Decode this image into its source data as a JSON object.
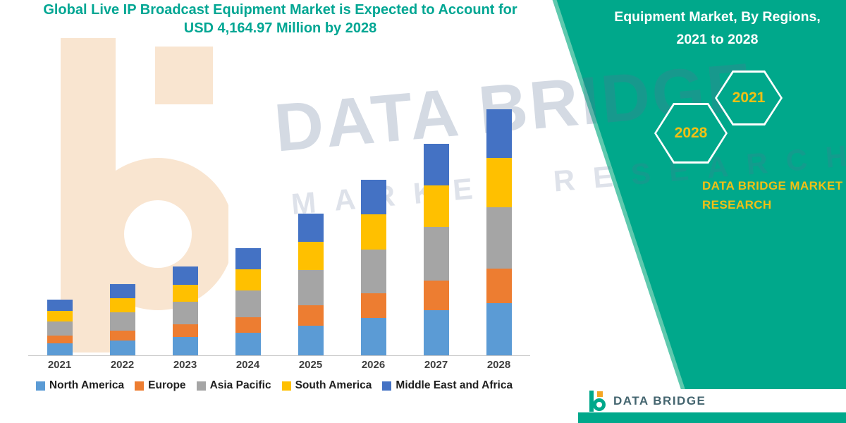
{
  "title": {
    "line1": "Global Live IP Broadcast Equipment Market is Expected to Account for",
    "line2": "USD 4,164.97 Million by 2028"
  },
  "side_panel": {
    "heading_line1": "Equipment Market, By Regions,",
    "heading_line2": "2021 to 2028",
    "hexagons": [
      {
        "label": "2028"
      },
      {
        "label": "2021"
      }
    ],
    "brand_line1": "DATA BRIDGE MARKET",
    "brand_line2": "RESEARCH",
    "panel_color": "#00A88B",
    "accent_yellow": "#F2C014"
  },
  "watermark": {
    "line1": "DATA BRIDGE",
    "line2": "MARKET  RESEARCH"
  },
  "logo": {
    "name": "DATA BRIDGE"
  },
  "chart_data": {
    "type": "bar",
    "stacked": true,
    "title": "Global Live IP Broadcast Equipment Market is Expected to Account for USD 4,164.97 Million by 2028",
    "unit": "USD Million",
    "categories": [
      "2021",
      "2022",
      "2023",
      "2024",
      "2025",
      "2026",
      "2027",
      "2028"
    ],
    "series": [
      {
        "name": "North America",
        "color": "#5B9BD5",
        "values": [
          200,
          255,
          315,
          385,
          505,
          630,
          760,
          880
        ]
      },
      {
        "name": "Europe",
        "color": "#ED7D31",
        "values": [
          135,
          170,
          215,
          260,
          340,
          420,
          510,
          590
        ]
      },
      {
        "name": "Asia Pacific",
        "color": "#A5A5A5",
        "values": [
          235,
          300,
          375,
          455,
          600,
          745,
          900,
          1040
        ]
      },
      {
        "name": "South America",
        "color": "#FFC000",
        "values": [
          185,
          240,
          295,
          360,
          475,
          590,
          710,
          830
        ]
      },
      {
        "name": "Middle East and Africa",
        "color": "#4472C4",
        "values": [
          185,
          245,
          300,
          360,
          480,
          595,
          710,
          825
        ]
      }
    ],
    "totals": [
      940,
      1210,
      1500,
      1820,
      2400,
      2980,
      3590,
      4165
    ],
    "xlabel": "",
    "ylabel": "",
    "ylim": [
      0,
      4300
    ],
    "grid": false,
    "legend_position": "bottom"
  }
}
